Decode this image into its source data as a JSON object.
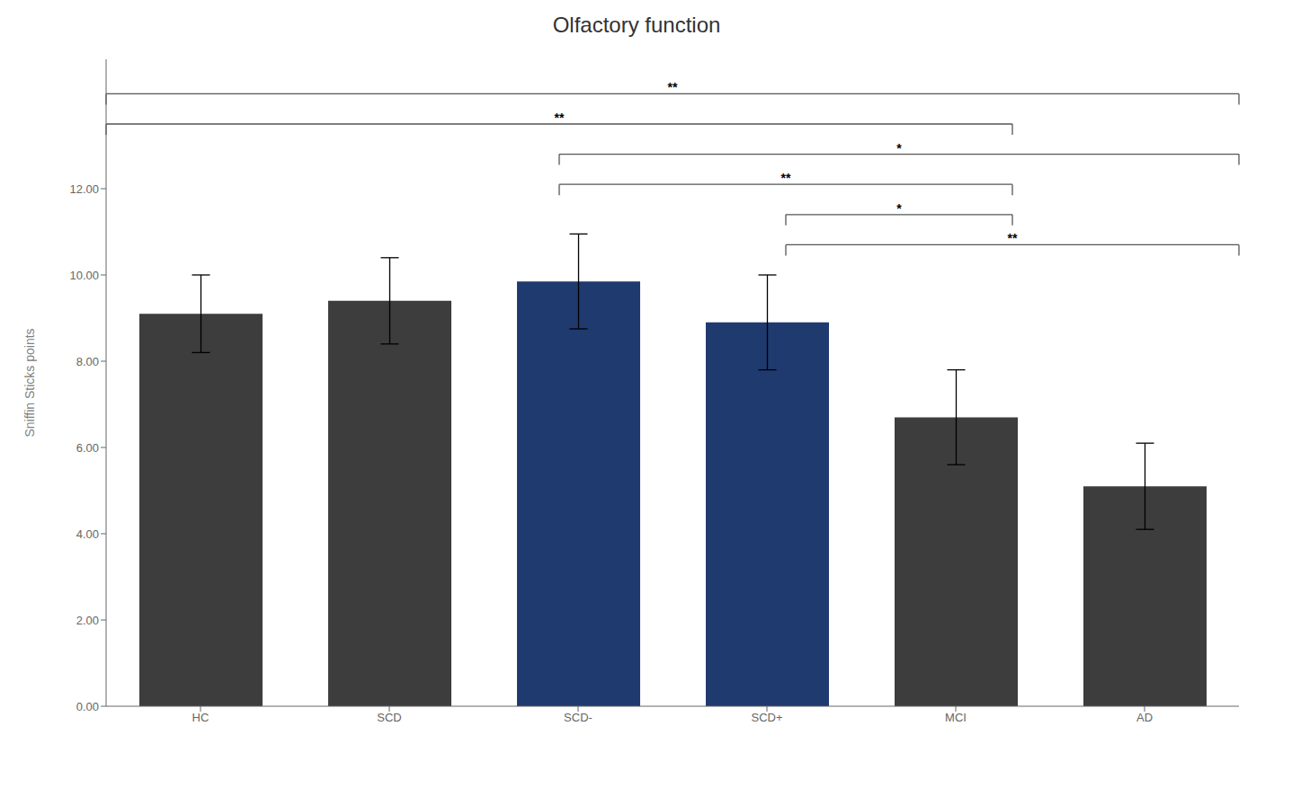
{
  "chart_data": {
    "type": "bar",
    "title": "Olfactory function",
    "ylabel": "Sniffin Sticks points",
    "categories": [
      "HC",
      "SCD",
      "SCD-",
      "SCD+",
      "MCI",
      "AD"
    ],
    "values": [
      9.1,
      9.4,
      9.85,
      8.9,
      6.7,
      5.1
    ],
    "errors": [
      0.9,
      1.0,
      1.1,
      1.1,
      1.1,
      1.0
    ],
    "colors": [
      "#3d3d3d",
      "#3d3d3d",
      "#1f3a6e",
      "#1f3a6e",
      "#3d3d3d",
      "#3d3d3d"
    ],
    "ylim": [
      0,
      15.0
    ],
    "yticks": [
      {
        "value": 0.0,
        "label": "0.00"
      },
      {
        "value": 2.0,
        "label": "2.00"
      },
      {
        "value": 4.0,
        "label": "4.00"
      },
      {
        "value": 6.0,
        "label": "6.00"
      },
      {
        "value": 8.0,
        "label": "8.00"
      },
      {
        "value": 10.0,
        "label": "10.00"
      },
      {
        "value": 12.0,
        "label": "12.00"
      }
    ],
    "grid": false,
    "brackets": [
      {
        "left": "HC",
        "right": "AD",
        "label": "**",
        "height": 14.2,
        "tick": 0.25,
        "color": "#555555"
      },
      {
        "left": "HC",
        "right": "MCI",
        "label": "**",
        "height": 13.5,
        "tick": 0.25,
        "color": "#555555"
      },
      {
        "left": "SCD-",
        "right": "AD",
        "label": "*",
        "height": 12.8,
        "tick": 0.25,
        "color": "#555555"
      },
      {
        "left": "SCD-",
        "right": "MCI",
        "label": "**",
        "height": 12.1,
        "tick": 0.25,
        "color": "#555555"
      },
      {
        "left": "SCD+",
        "right": "MCI",
        "label": "*",
        "height": 11.4,
        "tick": 0.25,
        "color": "#555555"
      },
      {
        "left": "SCD+",
        "right": "AD",
        "label": "**",
        "height": 10.7,
        "tick": 0.25,
        "color": "#555555"
      }
    ]
  }
}
